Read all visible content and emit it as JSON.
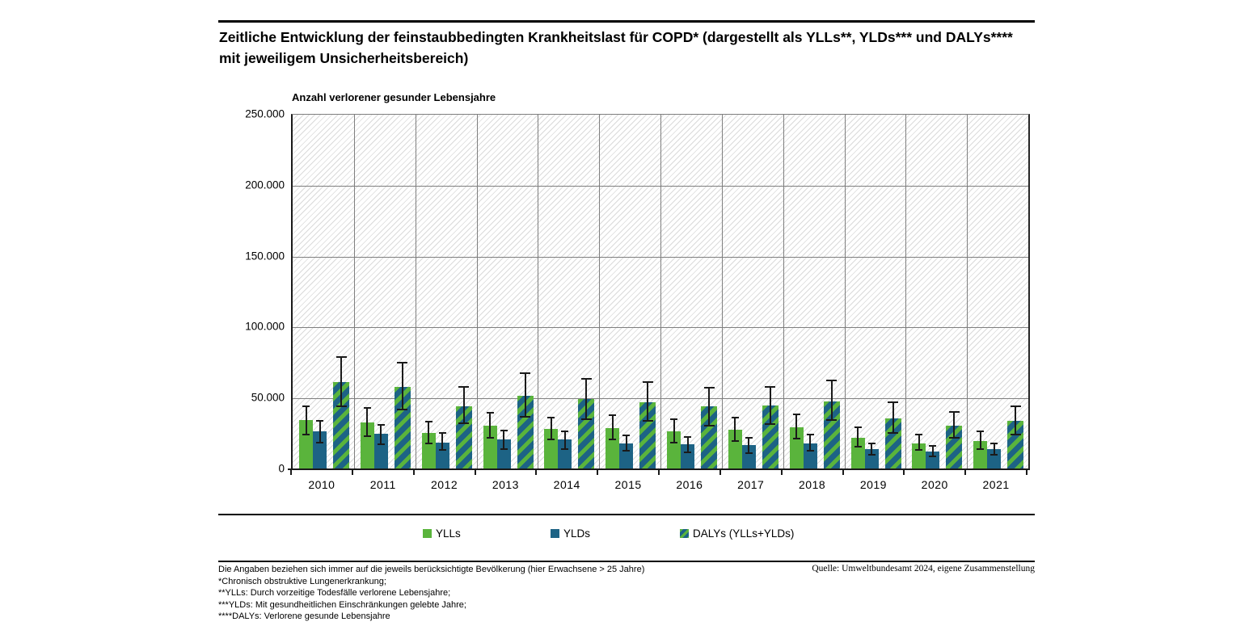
{
  "page": {
    "title": "Zeitliche Entwicklung der feinstaubbedingten Krankheitslast für COPD* (dargestellt als YLLs**, YLDs*** und DALYs**** mit jeweiligem Unsicherheitsbereich)",
    "source": "Quelle: Umweltbundesamt 2024, eigene Zusammenstellung",
    "footnotes": [
      "Die Angaben beziehen sich immer auf die jeweils berücksichtigte Bevölkerung (hier Erwachsene > 25 Jahre)",
      "*Chronisch obstruktive Lungenerkrankung;",
      "**YLLs: Durch vorzeitige Todesfälle verlorene Lebensjahre;",
      "***YLDs: Mit gesundheitlichen Einschränkungen gelebte Jahre;",
      "****DALYs: Verlorene gesunde Lebensjahre"
    ]
  },
  "chart_data": {
    "type": "bar",
    "title": "Zeitliche Entwicklung der feinstaubbedingten Krankheitslast für COPD* (dargestellt als YLLs**, YLDs*** und DALYs**** mit jeweiligem Unsicherheitsbereich)",
    "y_axis_title": "Anzahl verlorener gesunder Lebensjahre",
    "categories": [
      "2010",
      "2011",
      "2012",
      "2013",
      "2014",
      "2015",
      "2016",
      "2017",
      "2018",
      "2019",
      "2020",
      "2021"
    ],
    "ylim": [
      0,
      250000
    ],
    "y_tick_labels": [
      "0",
      "50.000",
      "100.000",
      "150.000",
      "200.000",
      "250.000"
    ],
    "grid": true,
    "legend_position": "bottom",
    "error_bars": "uncertainty interval per bar",
    "colors": {
      "ylls_green": "#5ab43c",
      "ylds_blue": "#1d6385",
      "hatch_pattern": "green diagonal stripes on blue"
    },
    "series": [
      {
        "name": "YLLs",
        "color": "#5ab43c",
        "values": [
          34500,
          33000,
          25500,
          31000,
          28500,
          29000,
          27000,
          28000,
          29500,
          22000,
          18500,
          20000
        ],
        "ci_low": [
          24500,
          23500,
          18000,
          22000,
          21000,
          21000,
          19000,
          20000,
          21500,
          16000,
          13500,
          14000
        ],
        "ci_high": [
          44500,
          43000,
          33500,
          40000,
          36500,
          38000,
          35500,
          36500,
          39000,
          29500,
          24500,
          26500
        ]
      },
      {
        "name": "YLDs",
        "color": "#1d6385",
        "values": [
          27000,
          25000,
          19000,
          21000,
          21000,
          18500,
          17500,
          17000,
          18500,
          14000,
          12500,
          14000
        ],
        "ci_low": [
          19000,
          17500,
          13500,
          14500,
          14500,
          13000,
          12000,
          11500,
          13000,
          10000,
          9000,
          10000
        ],
        "ci_high": [
          34000,
          31500,
          25500,
          27500,
          27000,
          24000,
          23000,
          22000,
          24500,
          18500,
          16500,
          18500
        ]
      },
      {
        "name": "DALYs (YLLs+YLDs)",
        "color": "#1d6385",
        "pattern": "diagonal-green-on-blue",
        "values": [
          61500,
          58000,
          44500,
          52000,
          49500,
          47500,
          44500,
          45000,
          48000,
          36000,
          31000,
          34000
        ],
        "ci_low": [
          44500,
          42000,
          32500,
          37000,
          35500,
          34000,
          31000,
          32000,
          34500,
          25500,
          22000,
          24500
        ],
        "ci_high": [
          79000,
          75000,
          58000,
          67500,
          64000,
          61500,
          57500,
          58000,
          62500,
          47500,
          40500,
          44500
        ]
      }
    ]
  }
}
